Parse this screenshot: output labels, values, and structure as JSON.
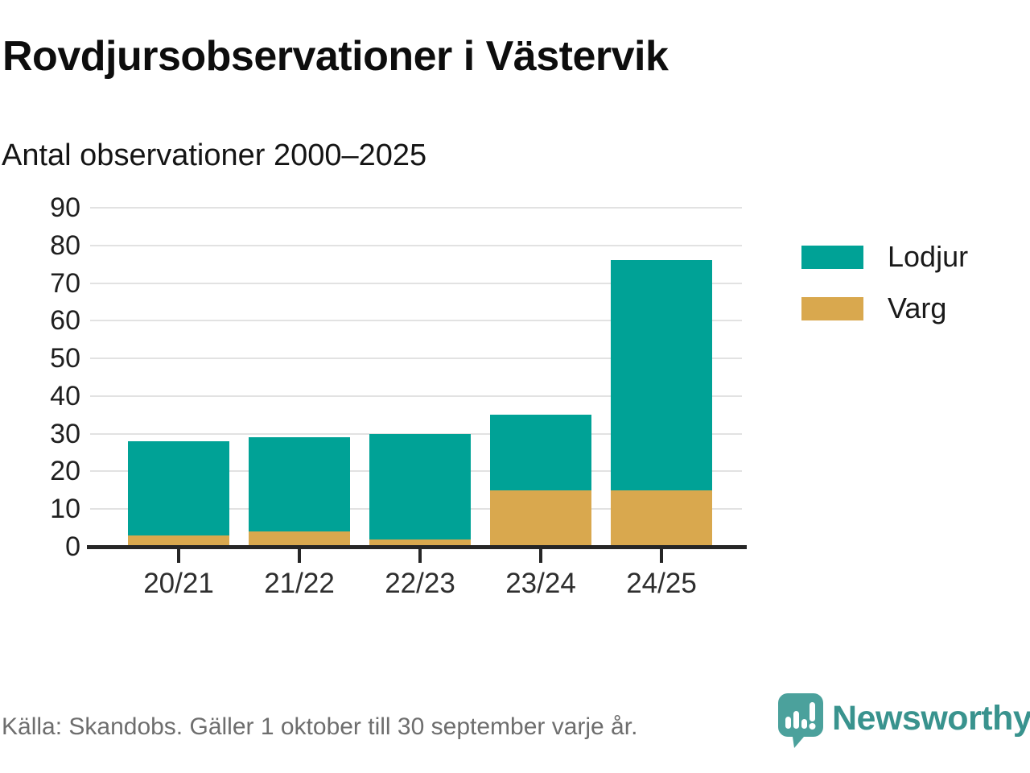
{
  "header": {
    "title": "Rovdjursobservationer i Västervik",
    "subtitle": "Antal observationer 2000–2025"
  },
  "chart_data": {
    "type": "bar",
    "stacked": true,
    "title": "Rovdjursobservationer i Västervik",
    "subtitle": "Antal observationer 2000–2025",
    "categories": [
      "20/21",
      "21/22",
      "22/23",
      "23/24",
      "24/25"
    ],
    "series": [
      {
        "name": "Varg",
        "color": "#d9a84e",
        "values": [
          3,
          4,
          2,
          15,
          15
        ]
      },
      {
        "name": "Lodjur",
        "color": "#00a296",
        "values": [
          25,
          25,
          28,
          20,
          61
        ]
      }
    ],
    "totals": [
      28,
      29,
      30,
      35,
      76
    ],
    "xlabel": "",
    "ylabel": "",
    "ylim": [
      0,
      90
    ],
    "yticks": [
      0,
      10,
      20,
      30,
      40,
      50,
      60,
      70,
      80,
      90
    ],
    "grid": true,
    "legend_position": "right"
  },
  "legend": {
    "items": [
      {
        "label": "Lodjur",
        "color": "#00a296"
      },
      {
        "label": "Varg",
        "color": "#d9a84e"
      }
    ]
  },
  "footer": {
    "source": "Källa: Skandobs. Gäller 1 oktober till 30 september varje år.",
    "brand": "Newsworthy"
  },
  "colors": {
    "lodjur": "#00a296",
    "varg": "#d9a84e",
    "grid": "#e2e2e2",
    "axis": "#262626",
    "brand_icon": "#4ba19c",
    "brand_text": "#39938e",
    "source_text": "#6e6e6e"
  }
}
